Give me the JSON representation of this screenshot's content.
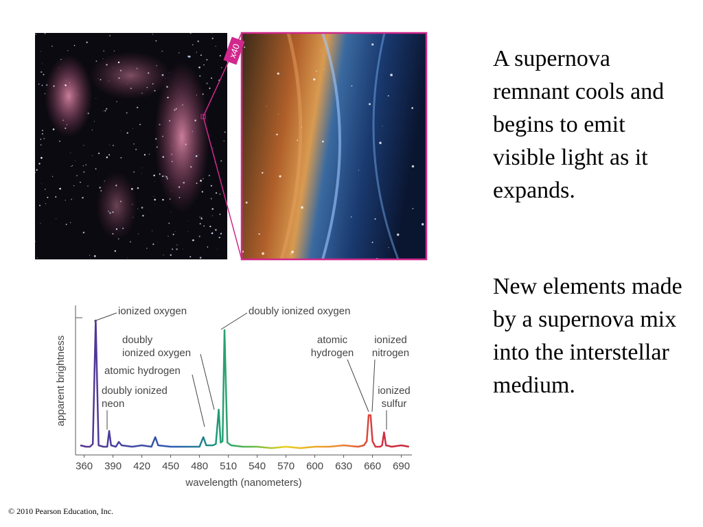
{
  "slide": {
    "paragraphs": [
      "A supernova remnant cools and begins to emit visible light as it expands.",
      "New elements made by a supernova mix into the interstellar medium."
    ],
    "footer": "© 2010 Pearson Education, Inc."
  },
  "image": {
    "magnification": "x40"
  },
  "chart_data": {
    "type": "line",
    "x_label": "wavelength (nanometers)",
    "y_label": "apparent brightness",
    "x": [
      356,
      362,
      366,
      369,
      372,
      375,
      380,
      384,
      386,
      388,
      393,
      396,
      399,
      410,
      420,
      430,
      434,
      437,
      450,
      465,
      480,
      484,
      487,
      494,
      497,
      500,
      502,
      504,
      506,
      509,
      513,
      525,
      540,
      555,
      570,
      585,
      600,
      615,
      630,
      645,
      651,
      654,
      656,
      658,
      660,
      663,
      668,
      670,
      672,
      674,
      680,
      690,
      698
    ],
    "values": [
      7,
      6,
      6,
      8,
      98,
      7,
      6,
      6,
      17.5,
      7,
      6,
      9.5,
      7,
      6,
      7,
      6,
      13,
      7,
      6,
      6,
      6,
      13,
      7,
      7,
      8,
      33,
      9,
      10,
      91,
      9,
      7,
      6,
      6,
      5,
      6,
      5,
      6,
      6,
      7,
      6,
      7,
      10,
      29,
      29,
      10,
      6,
      6,
      7,
      16.5,
      7,
      6,
      7,
      6
    ],
    "xlim": [
      351,
      701
    ],
    "xticks": [
      360,
      390,
      420,
      450,
      480,
      510,
      540,
      570,
      600,
      630,
      660,
      690
    ],
    "ylim": [
      0,
      109
    ],
    "yticks": [
      100
    ],
    "annotations": [
      [
        "ionized oxygen"
      ],
      [
        "doubly ionized oxygen"
      ],
      [
        "doubly",
        "ionized oxygen"
      ],
      [
        "atomic hydrogen"
      ],
      [
        "doubly ionized",
        "neon"
      ],
      [
        "atomic",
        "hydrogen"
      ],
      [
        "ionized",
        "nitrogen"
      ],
      [
        "ionized",
        "sulfur"
      ]
    ]
  }
}
